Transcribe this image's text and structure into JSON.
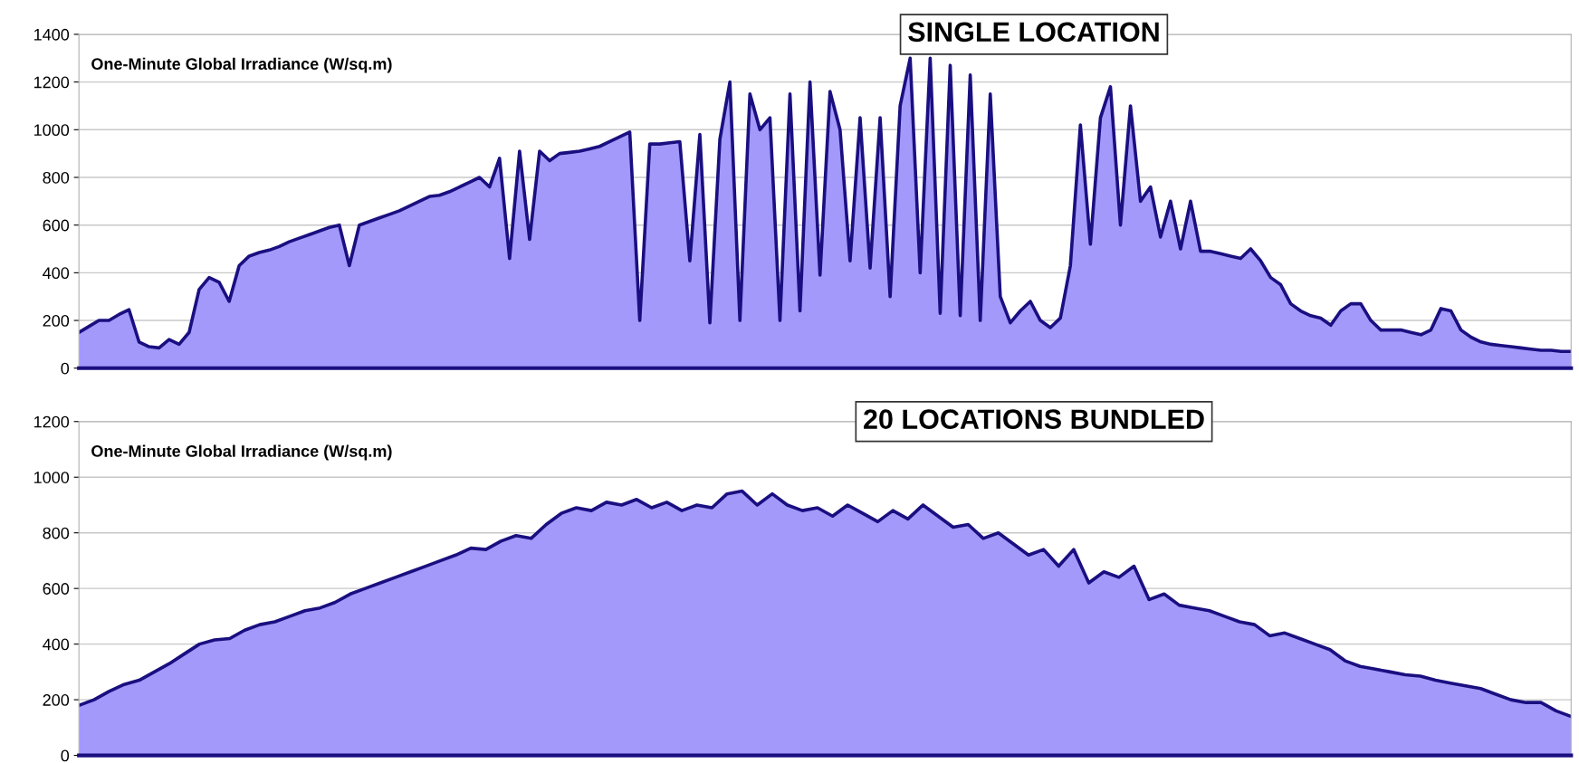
{
  "chart_data": [
    {
      "type": "area",
      "title": "SINGLE LOCATION",
      "ylabel": "One-Minute Global Irradiance (W/sq.m)",
      "ylim": [
        0,
        1400
      ],
      "yticks": [
        0,
        200,
        400,
        600,
        800,
        1000,
        1200,
        1400
      ],
      "grid": "y",
      "tick_labels": "y",
      "categories": [
        null,
        null,
        null,
        null,
        null,
        null,
        null,
        null,
        null,
        null,
        null,
        null,
        null,
        null,
        null,
        null,
        null,
        null,
        null,
        null,
        null,
        null,
        null,
        null,
        null,
        null,
        null,
        null,
        null,
        null,
        null,
        null,
        null,
        null,
        null,
        null,
        null,
        null,
        null,
        null,
        null,
        null,
        null,
        null,
        null,
        null,
        null,
        null,
        null,
        null,
        null,
        null,
        null,
        null,
        null,
        null,
        null,
        null,
        null,
        null,
        null,
        null,
        null,
        null,
        null,
        null,
        null,
        null,
        null,
        null,
        null,
        null,
        null,
        null,
        null,
        null,
        null,
        null,
        null,
        null,
        null,
        null,
        null,
        null,
        null,
        null,
        null,
        null,
        null,
        null,
        null,
        null,
        null,
        null,
        null,
        null,
        null,
        null,
        null,
        null,
        null,
        null,
        null,
        null,
        null,
        null,
        null,
        null,
        null,
        null,
        null,
        null,
        null,
        null,
        null,
        null,
        null,
        null,
        null,
        null,
        null,
        null,
        null,
        null,
        null,
        null,
        null,
        null,
        null,
        null,
        null,
        null,
        null,
        null,
        null,
        null,
        null,
        null,
        null,
        null,
        null,
        null,
        null,
        null,
        null,
        null,
        null,
        null,
        null,
        null
      ],
      "series": [
        {
          "color": "#1a0f80",
          "values": [
            150,
            175,
            200,
            200,
            225,
            245,
            110,
            90,
            85,
            120,
            100,
            150,
            330,
            380,
            360,
            280,
            430,
            470,
            485,
            495,
            510,
            530,
            545,
            560,
            575,
            590,
            600,
            430,
            600,
            615,
            630,
            645,
            660,
            680,
            700,
            720,
            725,
            740,
            760,
            780,
            800,
            760,
            880,
            460,
            910,
            540,
            910,
            870,
            900,
            905,
            910,
            920,
            930,
            950,
            970,
            990,
            200,
            940,
            940,
            945,
            950,
            450,
            980,
            190,
            960,
            1200,
            200,
            1150,
            1000,
            1050,
            200,
            1150,
            240,
            1200,
            390,
            1160,
            1000,
            450,
            1050,
            420,
            1050,
            300,
            1100,
            1300,
            400,
            1300,
            230,
            1270,
            220,
            1230,
            200,
            1150,
            300,
            190,
            240,
            280,
            200,
            170,
            210,
            430,
            1020,
            520,
            1050,
            1180,
            600,
            1100,
            700,
            760,
            550,
            700,
            500,
            700,
            490,
            490,
            480,
            470,
            460,
            500,
            450,
            380,
            350,
            270,
            240,
            220,
            210,
            180,
            240,
            270,
            270,
            200,
            160,
            160,
            160,
            150,
            140,
            160,
            250,
            240,
            160,
            130,
            110,
            100,
            95,
            90,
            85,
            80,
            75,
            75,
            70,
            70
          ]
        }
      ]
    },
    {
      "type": "area",
      "title": "20 LOCATIONS BUNDLED",
      "ylabel": "One-Minute Global Irradiance (W/sq.m)",
      "ylim": [
        0,
        1200
      ],
      "yticks": [
        0,
        200,
        400,
        600,
        800,
        1000,
        1200
      ],
      "grid": "y",
      "tick_labels": "y",
      "categories": [
        null,
        null,
        null,
        null,
        null,
        null,
        null,
        null,
        null,
        null,
        null,
        null,
        null,
        null,
        null,
        null,
        null,
        null,
        null,
        null,
        null,
        null,
        null,
        null,
        null,
        null,
        null,
        null,
        null,
        null,
        null,
        null,
        null,
        null,
        null,
        null,
        null,
        null,
        null,
        null,
        null,
        null,
        null,
        null,
        null,
        null,
        null,
        null,
        null,
        null,
        null,
        null,
        null,
        null,
        null,
        null,
        null,
        null,
        null,
        null,
        null,
        null,
        null,
        null,
        null,
        null,
        null,
        null,
        null,
        null,
        null,
        null,
        null,
        null,
        null,
        null,
        null,
        null,
        null,
        null,
        null,
        null,
        null,
        null,
        null,
        null,
        null,
        null,
        null,
        null,
        null,
        null,
        null,
        null,
        null,
        null,
        null,
        null,
        null,
        null
      ],
      "series": [
        {
          "color": "#1a0f80",
          "values": [
            180,
            200,
            230,
            255,
            270,
            300,
            330,
            365,
            400,
            415,
            420,
            450,
            470,
            480,
            500,
            520,
            530,
            550,
            580,
            600,
            620,
            640,
            660,
            680,
            700,
            720,
            745,
            740,
            770,
            790,
            780,
            830,
            870,
            890,
            880,
            910,
            900,
            920,
            890,
            910,
            880,
            900,
            890,
            940,
            950,
            900,
            940,
            900,
            880,
            890,
            860,
            900,
            870,
            840,
            880,
            850,
            900,
            860,
            820,
            830,
            780,
            800,
            760,
            720,
            740,
            680,
            740,
            620,
            660,
            640,
            680,
            560,
            580,
            540,
            530,
            520,
            500,
            480,
            470,
            430,
            440,
            420,
            400,
            380,
            340,
            320,
            310,
            300,
            290,
            285,
            270,
            260,
            250,
            240,
            220,
            200,
            190,
            190,
            160,
            140
          ]
        }
      ]
    }
  ]
}
